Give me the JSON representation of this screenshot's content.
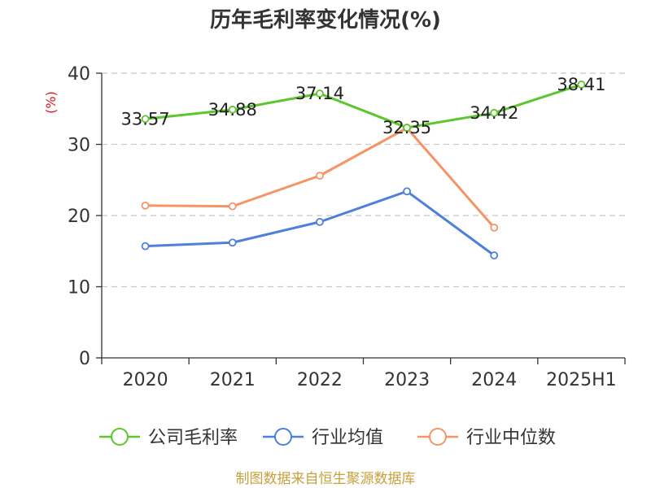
{
  "chart_data": {
    "type": "line",
    "title": "历年毛利率变化情况(%)",
    "ylabel": "(%)",
    "xlabel": "",
    "categories": [
      "2020",
      "2021",
      "2022",
      "2023",
      "2024",
      "2025H1"
    ],
    "ylim": [
      0,
      40
    ],
    "yticks": [
      0,
      10,
      20,
      30,
      40
    ],
    "grid": true,
    "legend_position": "bottom",
    "series": [
      {
        "name": "公司毛利率",
        "color": "#5cc72c",
        "show_labels": true,
        "values": [
          33.57,
          34.88,
          37.14,
          32.35,
          34.42,
          38.41
        ]
      },
      {
        "name": "行业均值",
        "color": "#4e7fdb",
        "show_labels": false,
        "values": [
          15.7,
          16.2,
          19.1,
          23.4,
          14.4,
          null
        ]
      },
      {
        "name": "行业中位数",
        "color": "#f59464",
        "show_labels": false,
        "values": [
          21.4,
          21.3,
          25.6,
          32.3,
          18.3,
          null
        ]
      }
    ]
  },
  "source": "制图数据来自恒生聚源数据库"
}
